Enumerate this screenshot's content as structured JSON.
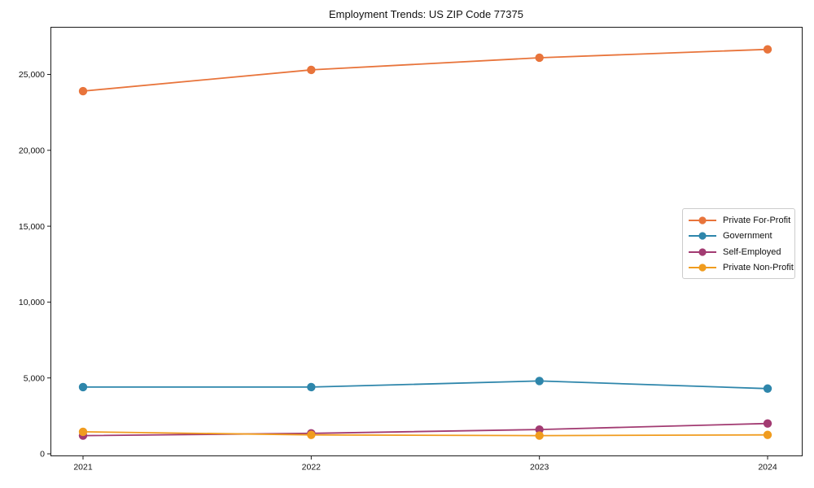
{
  "chart_data": {
    "type": "line",
    "title": "Employment Trends: US ZIP Code 77375",
    "x": [
      2021,
      2022,
      2023,
      2024
    ],
    "x_tick_labels": [
      "2021",
      "2022",
      "2023",
      "2024"
    ],
    "y_ticks": [
      0,
      5000,
      10000,
      15000,
      20000,
      25000
    ],
    "y_tick_labels": [
      "0",
      "5,000",
      "10,000",
      "15,000",
      "20,000",
      "25,000"
    ],
    "ylim": [
      0,
      28100
    ],
    "xlabel": "",
    "ylabel": "",
    "grid": false,
    "legend_position": "center-right",
    "series": [
      {
        "name": "Private For-Profit",
        "color": "#e8743b",
        "values": [
          23900,
          25300,
          26100,
          26650
        ]
      },
      {
        "name": "Government",
        "color": "#2e86ab",
        "values": [
          4400,
          4400,
          4800,
          4300
        ]
      },
      {
        "name": "Self-Employed",
        "color": "#a23b72",
        "values": [
          1200,
          1350,
          1600,
          2000
        ]
      },
      {
        "name": "Private Non-Profit",
        "color": "#f09c1f",
        "values": [
          1450,
          1250,
          1200,
          1250
        ]
      }
    ]
  }
}
